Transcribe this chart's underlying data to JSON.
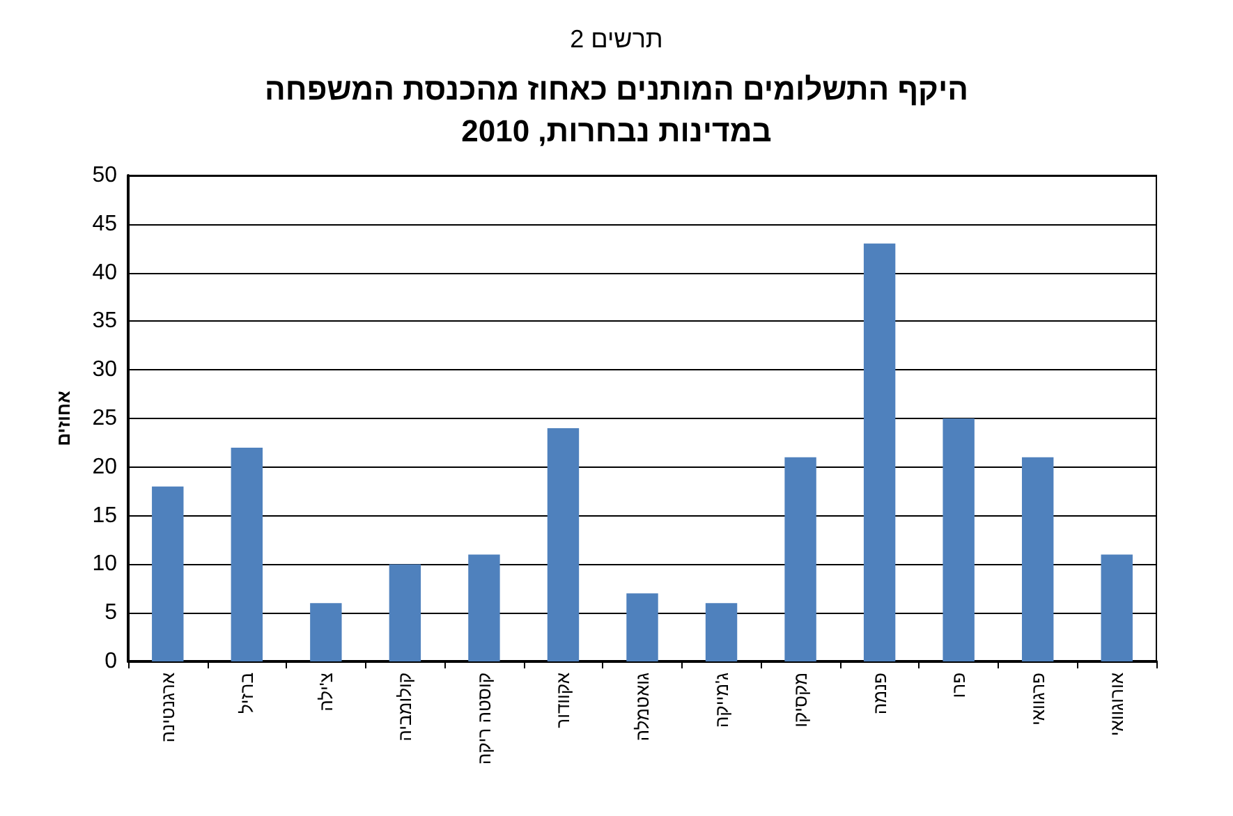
{
  "chart_data": {
    "type": "bar",
    "subtitle": "תרשים 2",
    "title": "היקף התשלומים המותנים כאחוז מהכנסת המשפחה\nבמדינות נבחרות, 2010",
    "ylabel": "אחוזים",
    "categories": [
      "ארגנטינה",
      "ברזיל",
      "צ'ילה",
      "קולומביה",
      "קוסטה ריקה",
      "אקוודור",
      "גואטמלה",
      "ג'מייקה",
      "מקסיקו",
      "פנמה",
      "פרו",
      "פרגוואי",
      "אורוגוואי"
    ],
    "values": [
      18,
      22,
      6,
      10,
      11,
      24,
      7,
      6,
      21,
      43,
      25,
      21,
      11
    ],
    "color": "#4f81bd",
    "ylim": [
      0,
      50
    ],
    "yticks": [
      0,
      5,
      10,
      15,
      20,
      25,
      30,
      35,
      40,
      45,
      50
    ],
    "grid": "y"
  }
}
